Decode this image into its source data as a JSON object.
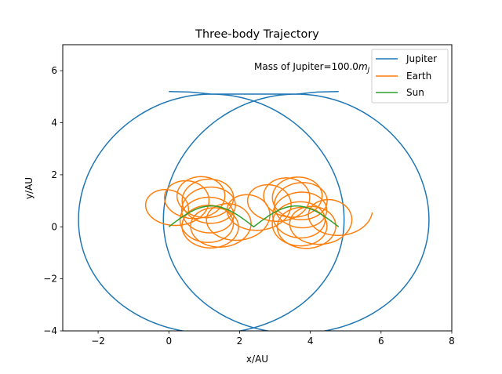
{
  "chart_data": {
    "type": "line",
    "title": "Three-body Trajectory",
    "xlabel": "x/AU",
    "ylabel": "y/AU",
    "xlim": [
      -3,
      8
    ],
    "ylim": [
      -4,
      7
    ],
    "xticks": [
      -2,
      0,
      2,
      4,
      6,
      8
    ],
    "yticks": [
      -4,
      -2,
      0,
      2,
      4,
      6
    ],
    "grid": false,
    "legend_position": "top-right",
    "annotation": "Mass of Jupiter=100.0",
    "annotation_math": "m",
    "annotation_math_sub": "J",
    "series": [
      {
        "name": "Jupiter",
        "color": "#1f77b4",
        "description": "two overlapping loops",
        "samples": {
          "x": [
            0.0,
            1.2,
            2.4,
            3.6,
            4.8,
            6.5,
            7.4,
            5.5,
            3.6,
            1.9,
            0.5,
            0.0,
            0.5,
            1.9,
            2.4
          ],
          "y": [
            5.2,
            5.0,
            4.5,
            5.0,
            5.2,
            3.0,
            0.5,
            -2.6,
            -3.5,
            -2.6,
            -0.5,
            0.5,
            2.5,
            4.6,
            5.2
          ]
        }
      },
      {
        "name": "Earth",
        "color": "#ff7f0e",
        "description": "repeated small loops drifting along x from about -1 to 5.8, y between -1 and 1.8",
        "samples": {
          "x": [
            -0.9,
            0.0,
            1.2,
            2.4,
            3.6,
            4.8,
            5.8
          ],
          "y": [
            0.0,
            1.2,
            1.7,
            1.4,
            1.8,
            1.2,
            0.0
          ]
        }
      },
      {
        "name": "Sun",
        "color": "#2ca02c",
        "description": "two arches between x=0 and x=4.8",
        "samples": {
          "x": [
            0.0,
            0.3,
            0.7,
            1.2,
            1.7,
            2.1,
            2.4,
            2.7,
            3.1,
            3.6,
            4.1,
            4.5,
            4.8
          ],
          "y": [
            0.0,
            0.45,
            0.72,
            0.8,
            0.72,
            0.45,
            0.0,
            0.45,
            0.72,
            0.8,
            0.72,
            0.45,
            0.0
          ]
        }
      }
    ]
  }
}
